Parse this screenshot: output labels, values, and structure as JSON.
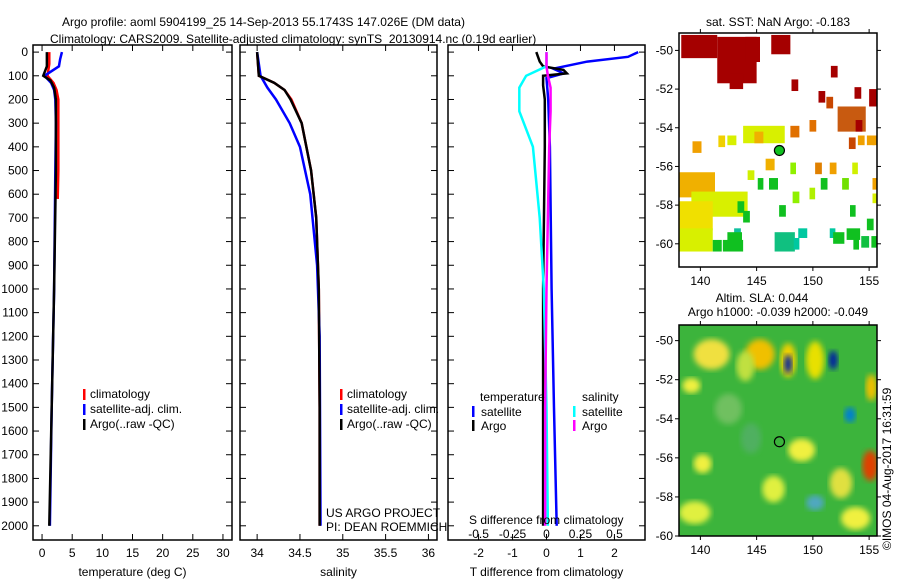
{
  "title_line1": "Argo profile: aoml 5904199_25 14-Sep-2013 55.1743S 147.026E (DM data)",
  "title_line2": "Climatology: CARS2009. Satellite-adjusted climatology: synTS_20130914.nc (0.19d earlier)",
  "copyright": "©IMOS 04-Aug-2017 16:31:59",
  "colors": {
    "climatology": "#ff0000",
    "satellite": "#0000ff",
    "argo": "#000000",
    "s_satellite": "#00ffff",
    "s_argo": "#ff00ff"
  },
  "chart_data": [
    {
      "type": "line",
      "name": "temperature",
      "xlabel": "temperature (deg C)",
      "xlim": [
        -1.5,
        31.5
      ],
      "ylim": [
        2060,
        -30
      ],
      "xticks": [
        0,
        5,
        10,
        15,
        20,
        25,
        30
      ],
      "yticks": [
        0,
        100,
        200,
        300,
        400,
        500,
        600,
        700,
        800,
        900,
        1000,
        1100,
        1200,
        1300,
        1400,
        1500,
        1600,
        1700,
        1800,
        1900,
        2000
      ],
      "legend": [
        "climatology",
        "satellite-adj. clim.",
        "Argo(..raw -QC)"
      ],
      "series": [
        {
          "name": "climatology",
          "color": "#ff0000",
          "depth": [
            0,
            50,
            100,
            130,
            160,
            200,
            300,
            400,
            500,
            620
          ],
          "values": [
            1.2,
            1.2,
            0.9,
            1.9,
            2.4,
            2.7,
            2.7,
            2.7,
            2.7,
            2.6
          ]
        },
        {
          "name": "satellite-adj. clim.",
          "color": "#0000ff",
          "depth": [
            0,
            30,
            60,
            100,
            130,
            160,
            200,
            300,
            500,
            1000,
            1500,
            2000
          ],
          "values": [
            3.3,
            3.0,
            2.8,
            0.4,
            1.5,
            2.0,
            2.2,
            2.3,
            2.2,
            2.0,
            1.6,
            1.3
          ]
        },
        {
          "name": "Argo(..raw -QC)",
          "color": "#000000",
          "depth": [
            0,
            60,
            100,
            120,
            150,
            200,
            300,
            500,
            1000,
            1500,
            2000
          ],
          "values": [
            0.8,
            0.8,
            0.2,
            1.4,
            2.0,
            2.3,
            2.3,
            2.3,
            2.0,
            1.6,
            1.2
          ]
        }
      ]
    },
    {
      "type": "line",
      "name": "salinity",
      "xlabel": "salinity",
      "xlim": [
        33.8,
        36.1
      ],
      "ylim": [
        2060,
        -30
      ],
      "xticks": [
        34,
        34.5,
        35,
        35.5,
        36
      ],
      "legend": [
        "climatology",
        "satellite-adj. clim.",
        "Argo(..raw -QC)"
      ],
      "annotation": [
        "US ARGO PROJECT",
        "PI: DEAN ROEMMICH"
      ],
      "series": [
        {
          "name": "climatology",
          "color": "#ff0000",
          "depth": [
            0,
            100,
            130,
            160,
            200,
            300,
            500,
            700,
            1000,
            1500,
            2000
          ],
          "values": [
            34.0,
            34.02,
            34.2,
            34.32,
            34.4,
            34.52,
            34.63,
            34.69,
            34.72,
            34.73,
            34.73
          ]
        },
        {
          "name": "satellite-adj. clim.",
          "color": "#0000ff",
          "depth": [
            0,
            100,
            150,
            200,
            300,
            400,
            600,
            900,
            1200,
            2000
          ],
          "values": [
            34.0,
            34.04,
            34.12,
            34.22,
            34.38,
            34.5,
            34.62,
            34.7,
            34.73,
            34.74
          ]
        },
        {
          "name": "Argo(..raw -QC)",
          "color": "#000000",
          "depth": [
            0,
            100,
            130,
            160,
            200,
            300,
            500,
            700,
            1000,
            1500,
            2000
          ],
          "values": [
            34.0,
            34.02,
            34.2,
            34.32,
            34.39,
            34.52,
            34.63,
            34.69,
            34.72,
            34.73,
            34.73
          ]
        }
      ]
    },
    {
      "type": "line",
      "name": "difference",
      "xlabel": "T difference from climatology",
      "x2label": "S difference from climatology",
      "xlim": [
        -2.9,
        2.9
      ],
      "ylim": [
        2060,
        -30
      ],
      "xticks": [
        -2,
        -1,
        0,
        1,
        2
      ],
      "x2ticks": [
        -0.5,
        -0.25,
        0,
        0.25,
        0.5
      ],
      "legend_t_title": "temperature",
      "legend_s_title": "salinity",
      "legend_t": [
        "satellite",
        "Argo"
      ],
      "legend_s": [
        "satellite",
        "Argo"
      ],
      "series": [
        {
          "name": "T satellite",
          "color": "#0000ff",
          "scale": "T",
          "depth": [
            0,
            20,
            40,
            70,
            90,
            110,
            200,
            400,
            1000,
            1500,
            2000
          ],
          "values": [
            2.7,
            2.4,
            1.2,
            0.2,
            0.5,
            0.0,
            0.05,
            0.1,
            0.15,
            0.22,
            0.3
          ]
        },
        {
          "name": "T Argo",
          "color": "#000000",
          "scale": "T",
          "depth": [
            0,
            20,
            40,
            60,
            75,
            90,
            100,
            140,
            200,
            400,
            1000,
            1500,
            2000
          ],
          "values": [
            -0.3,
            -0.25,
            -0.2,
            -0.1,
            0.5,
            0.6,
            -0.1,
            -0.1,
            -0.05,
            -0.05,
            -0.1,
            -0.1,
            -0.1
          ]
        },
        {
          "name": "S satellite",
          "color": "#00ffff",
          "scale": "S",
          "depth": [
            0,
            60,
            100,
            150,
            250,
            400,
            700,
            1000,
            1500,
            2000
          ],
          "values": [
            0.0,
            0.0,
            -0.15,
            -0.2,
            -0.2,
            -0.1,
            -0.05,
            -0.02,
            0.0,
            0.01
          ]
        },
        {
          "name": "S Argo",
          "color": "#ff00ff",
          "scale": "S",
          "depth": [
            0,
            60,
            100,
            150,
            250,
            400,
            700,
            1000,
            1500,
            2000
          ],
          "values": [
            0.0,
            0.0,
            0.01,
            0.03,
            0.03,
            0.02,
            0.01,
            0.0,
            -0.01,
            -0.01
          ]
        }
      ]
    },
    {
      "type": "heatmap",
      "name": "sst-map",
      "title": "sat. SST: NaN Argo: -0.183",
      "xlim": [
        138.1,
        155.7
      ],
      "ylim": [
        -61.2,
        -49.1
      ],
      "xticks": [
        140,
        145,
        150,
        155
      ],
      "yticks": [
        -50,
        -52,
        -54,
        -56,
        -58,
        -60
      ],
      "argo_position": [
        147.026,
        -55.1743
      ],
      "cells": [
        [
          138.3,
          -49.2,
          3.2,
          1.2,
          "#a50000"
        ],
        [
          141.5,
          -49.3,
          3.5,
          2.4,
          "#a50000"
        ],
        [
          142.6,
          -51.2,
          1.2,
          0.8,
          "#a50000"
        ],
        [
          144,
          -49.3,
          1.3,
          1.3,
          "#a50000"
        ],
        [
          146.3,
          -49.2,
          1.7,
          1
        ],
        [
          148.1,
          -51.5,
          0.6,
          0.6,
          "#a50000"
        ],
        [
          151.6,
          -50.8,
          0.6,
          0.6,
          "#a50000"
        ],
        [
          150.5,
          -52.1,
          0.6,
          0.6,
          "#a50000"
        ],
        [
          153.7,
          -51.9,
          0.6,
          0.6,
          "#a50000"
        ],
        [
          155,
          -52,
          0.7,
          0.9,
          "#a50000"
        ],
        [
          151.2,
          -52.4,
          0.6,
          0.6,
          "#c84600"
        ],
        [
          152.2,
          -52.9,
          2.5,
          1.3,
          "#c85a10"
        ],
        [
          153.8,
          -53.6,
          0.6,
          0.6,
          "#a50000"
        ],
        [
          149.7,
          -53.6,
          0.6,
          0.6,
          "#e07000"
        ],
        [
          148,
          -53.9,
          0.8,
          0.6,
          "#e07000"
        ],
        [
          153.2,
          -54.5,
          0.6,
          0.6,
          "#c84600"
        ],
        [
          154,
          -54.4,
          0.6,
          0.5,
          "#f0a000"
        ],
        [
          154.8,
          -54.4,
          0.7,
          0.5,
          "#f0a000"
        ],
        [
          155.3,
          -54.4,
          0.4,
          0.5,
          "#f0a000"
        ],
        [
          139.3,
          -54.7,
          0.8,
          0.6,
          "#f0a000"
        ],
        [
          141.6,
          -54.4,
          0.6,
          0.6,
          "#f0d000"
        ],
        [
          142.4,
          -54.4,
          0.8,
          0.5,
          "#d8f000"
        ],
        [
          143.8,
          -53.9,
          3.7,
          0.9,
          "#d8f000"
        ],
        [
          144.8,
          -54.2,
          0.8,
          0.6,
          "#f0b000"
        ],
        [
          145.8,
          -55.6,
          0.8,
          0.6,
          "#f0b000"
        ],
        [
          144.2,
          -56.2,
          0.6,
          0.5,
          "#d0f000"
        ],
        [
          148,
          -55.8,
          0.5,
          0.6,
          "#90f000"
        ],
        [
          150.2,
          -55.8,
          0.6,
          0.6,
          "#e08000"
        ],
        [
          151.5,
          -55.8,
          0.6,
          0.6,
          "#f0a000"
        ],
        [
          153.5,
          -55.8,
          0.5,
          0.6,
          "#d0f000"
        ],
        [
          138.1,
          -56.3,
          3.2,
          1.3,
          "#f0b000"
        ],
        [
          139.2,
          -57.3,
          5,
          1.3,
          "#d8f000"
        ],
        [
          138.1,
          -57.8,
          3,
          1.5,
          "#f0e000"
        ],
        [
          138.1,
          -59.2,
          3,
          1.2,
          "#d8f000"
        ],
        [
          143.3,
          -57.8,
          0.6,
          0.6,
          "#10c020"
        ],
        [
          143.8,
          -58.3,
          0.6,
          0.6,
          "#10c020"
        ],
        [
          146.1,
          -56.6,
          0.8,
          0.6,
          "#10c020"
        ],
        [
          145.1,
          -56.6,
          0.5,
          0.6,
          "#10c020"
        ],
        [
          148.2,
          -57.3,
          0.6,
          0.6,
          "#90f000"
        ],
        [
          149.7,
          -57.1,
          0.5,
          0.6,
          "#b0f000"
        ],
        [
          150.7,
          -56.6,
          0.6,
          0.6,
          "#10c020"
        ],
        [
          152.6,
          -56.6,
          0.6,
          0.6,
          "#70e000"
        ],
        [
          155.3,
          -56.6,
          0.4,
          0.6,
          "#f0a000"
        ],
        [
          155.3,
          -57.4,
          0.4,
          0.5,
          "#d8f000"
        ],
        [
          147,
          -58,
          0.6,
          0.6,
          "#10c020"
        ],
        [
          153.3,
          -58,
          0.5,
          0.6,
          "#10c020"
        ],
        [
          154.8,
          -58.7,
          0.6,
          0.6,
          "#10c020"
        ],
        [
          143,
          -59.2,
          0.6,
          0.6,
          "#10c0a0"
        ],
        [
          142.4,
          -59.4,
          1.3,
          0.6,
          "#10c020"
        ],
        [
          146.6,
          -59.4,
          1.8,
          1.0,
          "#10c080"
        ],
        [
          148.7,
          -59.2,
          0.8,
          0.5,
          "#00c8a0"
        ],
        [
          148.3,
          -59.7,
          0.5,
          0.6,
          "#00c8a0"
        ],
        [
          151.5,
          -59.2,
          0.5,
          0.5,
          "#00c8a0"
        ],
        [
          151.8,
          -59.4,
          1.0,
          0.6,
          "#10c020"
        ],
        [
          153,
          -59.2,
          1.2,
          0.6,
          "#10c020"
        ],
        [
          154.3,
          -59.6,
          0.7,
          0.6,
          "#10c040"
        ],
        [
          155.2,
          -59.6,
          0.5,
          0.6,
          "#10c020"
        ],
        [
          141.1,
          -59.8,
          0.8,
          0.6,
          "#10c020"
        ],
        [
          142,
          -59.8,
          1.8,
          0.6,
          "#10c020"
        ],
        [
          153.6,
          -59.7,
          0.5,
          0.6,
          "#10c020"
        ]
      ]
    },
    {
      "type": "heatmap",
      "name": "sla-map",
      "title_line1": "Altim. SLA: 0.044",
      "title_line2": "Argo h1000: -0.039 h2000: -0.049",
      "xlim": [
        138.1,
        155.7
      ],
      "ylim": [
        -60,
        -49.2
      ],
      "xticks": [
        140,
        145,
        150,
        155
      ],
      "yticks": [
        -50,
        -52,
        -54,
        -56,
        -58,
        -60
      ],
      "argo_position": [
        147.026,
        -55.1743
      ],
      "blobs": [
        [
          141,
          -50.7,
          1.6,
          0.8,
          "#f0e040"
        ],
        [
          145.3,
          -50.7,
          1.3,
          0.8,
          "#f0c000"
        ],
        [
          147.8,
          -51,
          0.7,
          0.9,
          "#f0d000"
        ],
        [
          147.8,
          -51.2,
          0.35,
          0.5,
          "#0020a0"
        ],
        [
          151.8,
          -51,
          0.4,
          0.5,
          "#0020a0"
        ],
        [
          150.2,
          -51,
          0.8,
          1,
          "#e8e000"
        ],
        [
          153.3,
          -53.8,
          0.5,
          0.4,
          "#0080d0"
        ],
        [
          155.1,
          -56.4,
          0.7,
          0.8,
          "#e04000"
        ],
        [
          144,
          -51.3,
          0.8,
          0.8,
          "#c0e040"
        ],
        [
          139.2,
          -52.3,
          0.8,
          0.4,
          "#f0f040"
        ],
        [
          142.5,
          -53.5,
          1.2,
          0.8,
          "#70c060"
        ],
        [
          149,
          -55.6,
          1.2,
          0.6,
          "#f0f040"
        ],
        [
          139.5,
          -58.8,
          1.4,
          0.6,
          "#e0f040"
        ],
        [
          146.5,
          -57.6,
          1.0,
          0.7,
          "#e0f040"
        ],
        [
          152.5,
          -57.3,
          1,
          0.8,
          "#e0e040"
        ],
        [
          150.2,
          -58.3,
          0.8,
          0.4,
          "#50a8c0"
        ],
        [
          144.5,
          -55,
          0.9,
          0.8,
          "#50b060"
        ],
        [
          153.8,
          -59.1,
          1.3,
          0.6,
          "#f0f040"
        ],
        [
          140.2,
          -56.3,
          0.8,
          0.5,
          "#f0f040"
        ],
        [
          155.2,
          -52.4,
          0.5,
          0.7,
          "#f0c000"
        ]
      ]
    }
  ]
}
